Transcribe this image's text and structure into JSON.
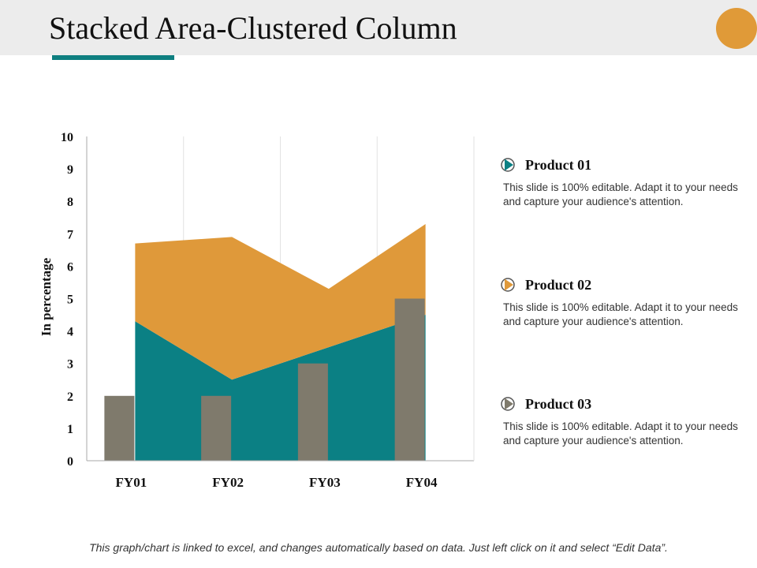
{
  "page": {
    "title": "Stacked Area-Clustered Column",
    "footer": "This graph/chart is linked to excel, and changes automatically based on data. Just left click on it and select “Edit Data”."
  },
  "colors": {
    "title_bar": "#ececec",
    "underline": "#0e7f80",
    "circle": "#e09a38",
    "teal": "#0b8084",
    "orange": "#df993a",
    "gray_bar": "#7f7a6c",
    "grid": "#e2e2e2",
    "axis": "#aaaaaa"
  },
  "chart_data": {
    "type": "bar",
    "categories": [
      "FY01",
      "FY02",
      "FY03",
      "FY04"
    ],
    "ylabel": "In percentage",
    "ylim": [
      0,
      10
    ],
    "yticks": [
      "0",
      "1",
      "2",
      "3",
      "4",
      "5",
      "6",
      "7",
      "8",
      "9",
      "10"
    ],
    "series": [
      {
        "name": "Product 01",
        "kind": "stacked-area",
        "color": "#0b8084",
        "values": [
          4.3,
          2.5,
          3.5,
          4.5
        ]
      },
      {
        "name": "Product 02",
        "kind": "stacked-area",
        "color": "#df993a",
        "values": [
          2.4,
          4.4,
          1.8,
          2.8
        ]
      },
      {
        "name": "Product 03",
        "kind": "column",
        "color": "#7f7a6c",
        "values": [
          2,
          2,
          3,
          5
        ]
      }
    ]
  },
  "legend": [
    {
      "name": "Product 01",
      "desc": "This slide is 100% editable. Adapt it to your needs and capture your audience's attention.",
      "color": "#0b8084"
    },
    {
      "name": "Product 02",
      "desc": "This slide is 100% editable. Adapt it to your needs and capture your audience's attention.",
      "color": "#df993a"
    },
    {
      "name": "Product 03",
      "desc": "This slide is 100% editable. Adapt it to your needs and capture your audience's attention.",
      "color": "#7f7a6c"
    }
  ]
}
